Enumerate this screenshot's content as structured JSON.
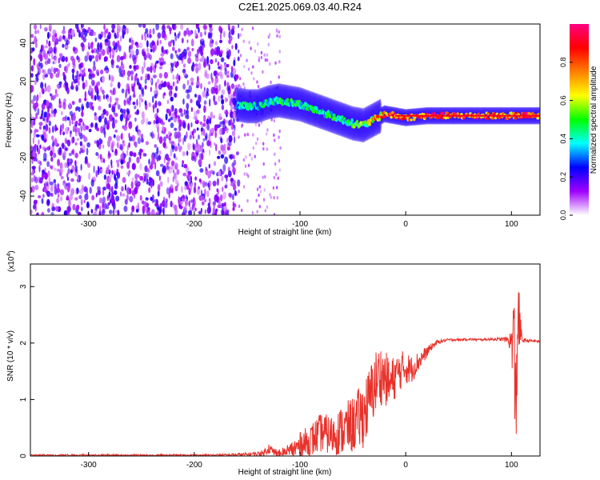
{
  "title": "C2E1.2025.069.03.40.R24",
  "chart_data": [
    {
      "type": "heatmap",
      "xlabel": "Height of straight line (km)",
      "ylabel": "Frequency (Hz)",
      "xlim": [
        -355,
        127
      ],
      "ylim": [
        -50,
        50
      ],
      "x_ticks": [
        -300,
        -200,
        -100,
        0,
        100
      ],
      "y_ticks": [
        -40,
        -20,
        0,
        20,
        40
      ],
      "colorbar": {
        "label": "Normalized spectral amplitude",
        "range": [
          0,
          1
        ],
        "ticks": [
          0.0,
          0.2,
          0.4,
          0.6,
          0.8
        ],
        "tick_labels": [
          "0.0",
          "0.2",
          "0.4",
          "0.6",
          "0.8"
        ],
        "colors": [
          "#ffffff",
          "#a000ff",
          "#0000ff",
          "#00ffff",
          "#00ff00",
          "#ffff00",
          "#ff7f00",
          "#ff0000",
          "#ff0080"
        ]
      },
      "noise_region": {
        "x_range": [
          -355,
          -158
        ],
        "y_range": [
          -50,
          50
        ],
        "level": 0.2
      },
      "signal_trace": {
        "x": [
          -160,
          -150,
          -140,
          -130,
          -120,
          -110,
          -100,
          -90,
          -80,
          -70,
          -60,
          -50,
          -40,
          -30,
          -20,
          -10,
          0,
          20,
          40,
          60,
          80,
          90,
          100,
          110,
          127
        ],
        "freq": [
          8,
          7,
          7,
          9,
          10,
          9,
          8,
          6,
          4,
          2,
          0,
          -2,
          -3,
          0,
          3,
          2,
          1,
          2,
          2,
          2,
          2,
          2,
          2,
          2,
          2
        ],
        "amplitude": [
          0.4,
          0.45,
          0.45,
          0.45,
          0.5,
          0.5,
          0.5,
          0.5,
          0.5,
          0.5,
          0.5,
          0.55,
          0.6,
          0.75,
          0.9,
          0.95,
          0.95,
          0.95,
          0.95,
          0.95,
          0.95,
          0.9,
          0.9,
          0.95,
          0.95
        ]
      },
      "grid": false
    },
    {
      "type": "line",
      "xlabel": "Height of straight line (km)",
      "ylabel": "SNR (10 * v/v)",
      "y_multiplier": "(x10^4)",
      "multiplier_base": "(x10",
      "multiplier_exp": "4",
      "multiplier_close": ")",
      "xlim": [
        -355,
        127
      ],
      "ylim": [
        0,
        3.4
      ],
      "x_ticks": [
        -300,
        -200,
        -100,
        0,
        100
      ],
      "y_ticks": [
        0,
        1,
        2,
        3
      ],
      "color": "#e8312a",
      "series": [
        {
          "x": [
            -355,
            -300,
            -250,
            -200,
            -170,
            -150,
            -135,
            -130,
            -125,
            -120,
            -110,
            -100,
            -90,
            -80,
            -70,
            -60,
            -50,
            -40,
            -35,
            -30,
            -25,
            -20,
            -15,
            -10,
            -5,
            0,
            5,
            10,
            15,
            20,
            25,
            30,
            40,
            50,
            60,
            70,
            80,
            90,
            95,
            100,
            102,
            104,
            106,
            110,
            120,
            127
          ],
          "y": [
            0.01,
            0.01,
            0.01,
            0.01,
            0.02,
            0.03,
            0.05,
            0.15,
            0.08,
            0.05,
            0.1,
            0.2,
            0.3,
            0.45,
            0.4,
            0.5,
            0.6,
            0.8,
            1.0,
            1.3,
            1.5,
            1.45,
            1.3,
            1.45,
            1.55,
            1.6,
            1.55,
            1.65,
            1.75,
            1.85,
            1.95,
            2.02,
            2.06,
            2.06,
            2.07,
            2.06,
            2.07,
            2.07,
            2.07,
            2.05,
            2.3,
            0.8,
            2.6,
            2.05,
            2.04,
            2.03
          ]
        }
      ],
      "noise_amplitude": [
        0.02,
        0.02,
        0.02,
        0.02,
        0.02,
        0.03,
        0.05,
        0.1,
        0.08,
        0.08,
        0.15,
        0.25,
        0.3,
        0.35,
        0.35,
        0.45,
        0.5,
        0.6,
        0.6,
        0.6,
        0.55,
        0.5,
        0.45,
        0.4,
        0.35,
        0.3,
        0.25,
        0.2,
        0.15,
        0.1,
        0.06,
        0.04,
        0.02,
        0.02,
        0.02,
        0.02,
        0.02,
        0.03,
        0.05,
        0.2,
        1.2,
        1.2,
        0.8,
        0.04,
        0.02,
        0.02
      ],
      "grid": false
    }
  ]
}
